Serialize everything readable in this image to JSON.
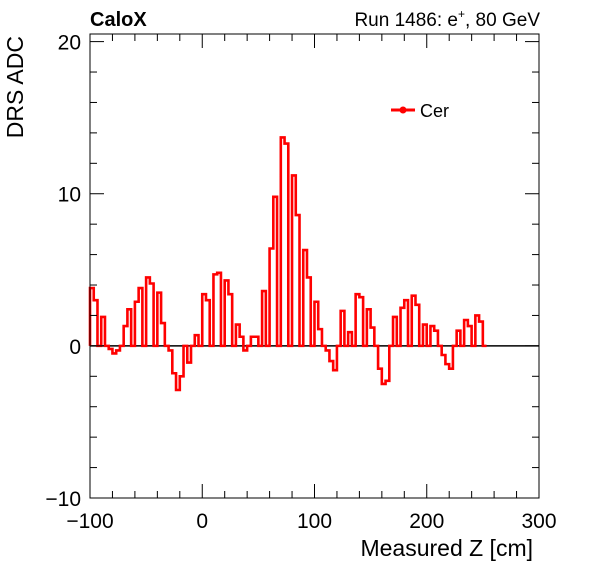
{
  "header": {
    "experiment": "CaloX",
    "run_prefix": "Run 1486: e",
    "run_sup": "+",
    "run_suffix": ", 80 GeV"
  },
  "chart_data": {
    "type": "line",
    "title": "",
    "xlabel": "Measured Z [cm]",
    "ylabel": "DRS ADC",
    "xlim": [
      -100,
      300
    ],
    "ylim": [
      -10,
      20.5
    ],
    "x_ticks": [
      -100,
      0,
      100,
      200,
      300
    ],
    "y_ticks": [
      -10,
      0,
      10,
      20
    ],
    "x_tick_labels": [
      "−100",
      "0",
      "100",
      "200",
      "300"
    ],
    "y_tick_labels": [
      "−10",
      "0",
      "10",
      "20"
    ],
    "grid": false,
    "legend": {
      "position": "top-right",
      "entries": [
        "Cer"
      ]
    },
    "reference_line_y": 0,
    "bin_width": 3.333,
    "series": [
      {
        "name": "Cer",
        "color": "#ff0000",
        "x_start": -100,
        "values": [
          3.8,
          3.0,
          0.0,
          1.9,
          0.0,
          -0.2,
          -0.5,
          -0.3,
          0.0,
          1.3,
          2.4,
          0.0,
          2.9,
          3.8,
          0.0,
          4.5,
          4.1,
          0.0,
          3.5,
          1.5,
          0.0,
          -0.3,
          -1.8,
          -2.9,
          -2.0,
          0.0,
          -1.1,
          0.0,
          0.7,
          0.0,
          3.4,
          3.0,
          0.0,
          4.7,
          4.8,
          0.0,
          4.3,
          3.4,
          0.0,
          1.4,
          0.6,
          -0.3,
          0.0,
          0.6,
          0.6,
          0.0,
          3.6,
          0.0,
          6.4,
          9.8,
          0.0,
          13.7,
          13.3,
          0.0,
          11.2,
          8.6,
          0.0,
          6.3,
          4.5,
          0.0,
          2.9,
          1.1,
          0.0,
          -0.3,
          -1.0,
          -1.6,
          0.0,
          2.3,
          0.0,
          0.9,
          0.0,
          3.4,
          3.2,
          0.0,
          2.4,
          1.2,
          0.0,
          -1.5,
          -2.5,
          -2.3,
          0.0,
          1.9,
          0.0,
          2.5,
          3.0,
          0.0,
          3.3,
          2.7,
          0.0,
          1.4,
          0.0,
          1.3,
          1.0,
          0.0,
          -0.6,
          -1.2,
          -1.5,
          0.0,
          1.0,
          0.0,
          1.7,
          1.3,
          0.0,
          2.0,
          1.6,
          0.0
        ]
      }
    ]
  }
}
